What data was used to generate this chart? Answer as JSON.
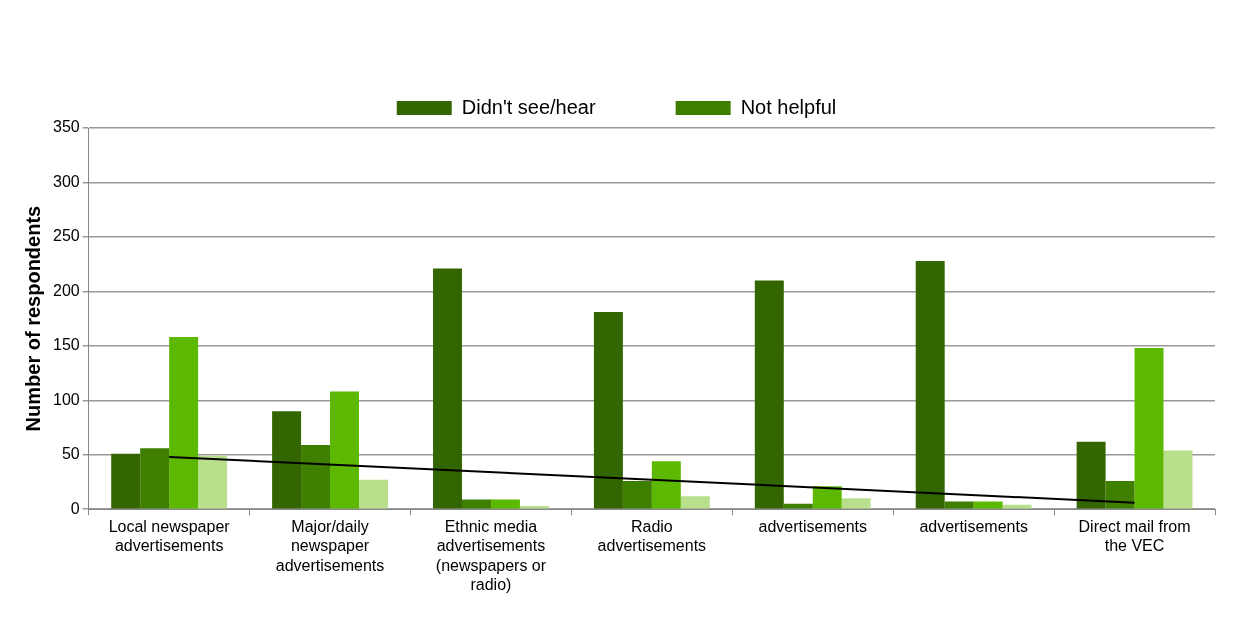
{
  "chart_data": {
    "type": "bar",
    "ylabel": "Number of respondents",
    "categories": [
      "Local newspaper advertisements",
      "Major/daily newspaper advertisements",
      "Ethnic media advertisements (newspapers or radio)",
      "Radio advertisements",
      "advertisements",
      "advertisements",
      "Direct mail from the VEC"
    ],
    "series": [
      {
        "name": "Didn't see/hear",
        "color": "#336600",
        "values": [
          51,
          90,
          221,
          181,
          210,
          228,
          62
        ]
      },
      {
        "name": "Not helpful",
        "color": "#3f7f00",
        "values": [
          56,
          59,
          9,
          26,
          5,
          7,
          26
        ]
      },
      {
        "color": "#5cb800",
        "values": [
          158,
          108,
          9,
          44,
          21,
          7,
          148
        ]
      },
      {
        "color": "#b8e08c",
        "values": [
          49,
          27,
          3,
          12,
          10,
          4,
          54
        ]
      },
      {
        "type": "line",
        "color": "#000000",
        "marker": "none",
        "values": [
          48,
          null,
          null,
          null,
          null,
          null,
          6
        ]
      }
    ],
    "ylim": [
      0,
      350
    ],
    "yticks": [
      0,
      50,
      100,
      150,
      200,
      250,
      300,
      350
    ],
    "grid": "y",
    "legend": "top"
  }
}
